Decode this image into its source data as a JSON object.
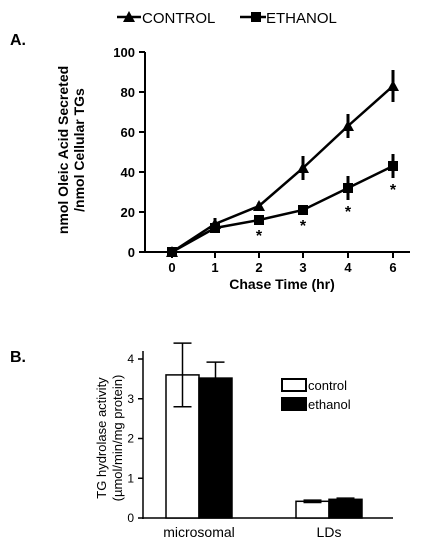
{
  "panel_labels": {
    "a": "A.",
    "b": "B."
  },
  "chart_data": [
    {
      "type": "line",
      "xlabel": "Chase Time (hr)",
      "ylabel": [
        "nmol Oleic Acid Secreted",
        "/nmol Cellular TGs"
      ],
      "x": [
        0,
        1,
        2,
        3,
        4,
        6
      ],
      "x_tick_labels": [
        "0",
        "1",
        "2",
        "3",
        "4",
        "6"
      ],
      "ylim": [
        0,
        100
      ],
      "y_ticks": [
        0,
        20,
        40,
        60,
        80,
        100
      ],
      "legend_position": "top",
      "series": [
        {
          "name": "CONTROL",
          "marker": "triangle",
          "values": [
            0,
            14,
            23,
            42,
            63,
            83
          ],
          "errors": [
            0,
            3,
            2,
            6,
            6,
            8
          ]
        },
        {
          "name": "ETHANOL",
          "marker": "square",
          "values": [
            0,
            12,
            16,
            21,
            32,
            43
          ],
          "errors": [
            0,
            2,
            2,
            2,
            6,
            6
          ]
        }
      ],
      "significance": {
        "marker": "*",
        "x": [
          2,
          3,
          4,
          6
        ]
      }
    },
    {
      "type": "bar",
      "ylabel": [
        "TG hydrolase activity",
        "(µmol/min/mg protein)"
      ],
      "categories": [
        "microsomal",
        "LDs"
      ],
      "ylim": [
        0,
        4
      ],
      "y_ticks": [
        0,
        1,
        2,
        3,
        4
      ],
      "legend_position": "right",
      "series": [
        {
          "name": "control",
          "fill": "white",
          "values": [
            3.6,
            0.42
          ],
          "errors": [
            0.8,
            0.03
          ]
        },
        {
          "name": "ethanol",
          "fill": "black",
          "values": [
            3.52,
            0.47
          ],
          "errors": [
            0.4,
            0.03
          ]
        }
      ]
    }
  ]
}
